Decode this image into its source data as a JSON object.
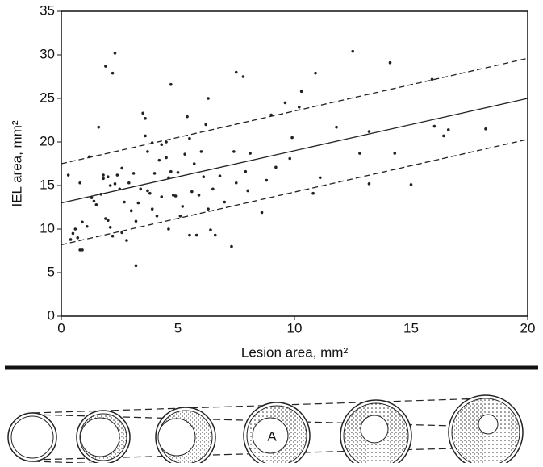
{
  "chart_data": {
    "type": "scatter",
    "x_label": "Lesion area, mm²",
    "y_label": "IEL area, mm²",
    "xlim": [
      0,
      20
    ],
    "ylim": [
      0,
      35
    ],
    "xticks": [
      0,
      5,
      10,
      15,
      20
    ],
    "yticks": [
      0,
      5,
      10,
      15,
      20,
      25,
      30,
      35
    ],
    "color": "#222222",
    "x": [
      0.3,
      0.4,
      0.5,
      0.6,
      0.7,
      0.8,
      0.9,
      0.8,
      0.9,
      1.1,
      1.2,
      1.3,
      1.4,
      1.5,
      1.6,
      1.7,
      1.8,
      1.8,
      1.9,
      1.9,
      2.0,
      2.0,
      2.1,
      2.1,
      2.2,
      2.3,
      2.2,
      2.3,
      2.4,
      2.5,
      2.6,
      2.6,
      2.7,
      2.8,
      2.9,
      3.0,
      3.1,
      3.2,
      3.2,
      3.3,
      3.4,
      3.5,
      3.6,
      3.6,
      3.7,
      3.7,
      3.8,
      3.9,
      3.9,
      4.0,
      4.1,
      4.2,
      4.3,
      4.3,
      4.5,
      4.5,
      4.6,
      4.6,
      4.7,
      4.7,
      4.8,
      4.9,
      5.0,
      5.1,
      5.2,
      5.3,
      5.4,
      5.5,
      5.5,
      5.6,
      5.7,
      5.8,
      5.9,
      6.0,
      6.1,
      6.2,
      6.3,
      6.3,
      6.4,
      6.5,
      6.6,
      6.8,
      7.0,
      7.3,
      7.4,
      7.5,
      7.5,
      7.8,
      7.9,
      8.0,
      8.1,
      8.6,
      8.8,
      9.0,
      9.2,
      9.6,
      9.8,
      9.9,
      10.2,
      10.3,
      10.8,
      10.9,
      11.1,
      11.8,
      12.5,
      12.8,
      13.2,
      13.2,
      14.1,
      14.3,
      15.0,
      15.9,
      16.0,
      16.4,
      16.6,
      18.2
    ],
    "values": [
      16.2,
      8.8,
      9.5,
      10,
      9,
      7.6,
      7.6,
      15.3,
      10.8,
      10.3,
      18.3,
      13.6,
      13.2,
      12.8,
      21.7,
      14,
      15.8,
      16.2,
      11.2,
      28.7,
      11,
      16,
      15,
      10.2,
      27.9,
      30.2,
      9.2,
      15.2,
      16.2,
      14.6,
      17,
      9.6,
      13.1,
      8.7,
      15.3,
      12.1,
      16.4,
      10.9,
      5.8,
      13,
      14.6,
      23.3,
      20.7,
      22.7,
      14.4,
      18.9,
      14.1,
      12.3,
      19.9,
      16.4,
      11.5,
      17.9,
      13.7,
      19.7,
      20,
      18.2,
      10,
      15.9,
      26.6,
      16.6,
      13.9,
      13.8,
      16.5,
      11.5,
      12.6,
      18.6,
      22.9,
      9.3,
      20.4,
      14.3,
      17.5,
      9.3,
      13.9,
      18.9,
      16,
      22,
      25,
      12.3,
      9.9,
      14.6,
      9.3,
      16.1,
      13.1,
      8,
      18.9,
      15.3,
      28,
      27.5,
      16.6,
      14.4,
      18.7,
      11.9,
      15.6,
      23.1,
      17.1,
      24.5,
      18.1,
      20.5,
      24,
      25.8,
      14.1,
      27.9,
      15.9,
      21.7,
      30.4,
      18.7,
      21.2,
      15.2,
      29.1,
      18.7,
      15.1,
      27.2,
      21.8,
      20.7,
      21.4,
      21.5
    ],
    "lines": [
      {
        "x": [
          0,
          20
        ],
        "values": [
          17.5,
          29.6
        ],
        "dashed": true
      },
      {
        "x": [
          0,
          20
        ],
        "values": [
          13,
          25
        ],
        "dashed": false
      },
      {
        "x": [
          0,
          20
        ],
        "values": [
          8.2,
          20.3
        ],
        "dashed": true
      }
    ]
  },
  "diagram": {
    "label": "A"
  }
}
